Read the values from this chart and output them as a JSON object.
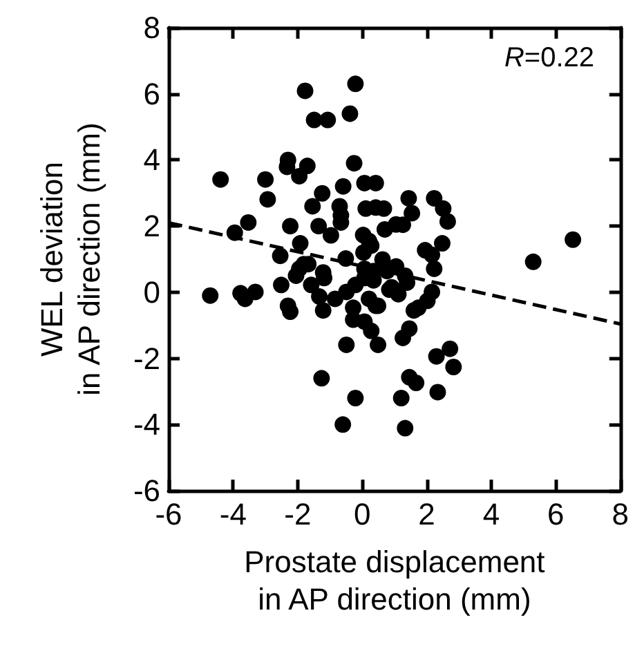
{
  "chart_data": {
    "type": "scatter",
    "xlabel": "Prostate displacement\nin AP direction (mm)",
    "ylabel": "WEL deviation\nin AP direction (mm)",
    "annotations": [
      "R=0.22"
    ],
    "xlim": [
      -6,
      8
    ],
    "ylim": [
      -6,
      8
    ],
    "xticks": [
      -6,
      -4,
      -2,
      0,
      2,
      4,
      6,
      8
    ],
    "yticks": [
      -6,
      -4,
      -2,
      0,
      2,
      4,
      6,
      8
    ],
    "grid": false,
    "marker": "circle",
    "series": [
      {
        "color": "#000000",
        "x": [
          -1.77,
          -0.21,
          -1.49,
          -1.07,
          -0.38,
          -4.39,
          -3.0,
          -2.3,
          -2.33,
          -1.95,
          -1.7,
          -0.25,
          -2.93,
          -1.24,
          -0.59,
          0.07,
          -1.54,
          -0.7,
          0.11,
          0.42,
          0.67,
          -0.66,
          -3.53,
          -2.23,
          -1.35,
          -0.66,
          0.7,
          -3.95,
          -0.97,
          0.03,
          -1.92,
          0.21,
          -2.54,
          -0.51,
          0.04,
          -1.81,
          -1.21,
          0.07,
          1.05,
          0.42,
          1.44,
          2.23,
          2.51,
          2.65,
          1.54,
          1.26,
          2.48,
          1.95,
          2.16,
          2.23,
          0.28,
          0.63,
          1.05,
          1.33,
          5.3,
          6.53,
          -4.71,
          -3.77,
          -3.63,
          -3.31,
          -2.51,
          -2.3,
          -2.23,
          -2.05,
          -1.58,
          -1.18,
          -1.33,
          -1.21,
          -0.84,
          -1.95,
          -1.67,
          -0.49,
          -0.21,
          -0.28,
          -0.28,
          0.07,
          0.35,
          0.21,
          0.49,
          0.07,
          0.28,
          0.49,
          -0.49,
          -1.26,
          -0.21,
          -0.6,
          1.21,
          0.84,
          0.35,
          0.77,
          0.91,
          1.12,
          1.39,
          2.16,
          2.02,
          1.74,
          1.6,
          0.42,
          1.46,
          1.26,
          2.3,
          2.72,
          2.83,
          1.46,
          1.67,
          2.34,
          1.33
        ],
        "values": [
          6.09,
          6.3,
          5.21,
          5.21,
          5.4,
          3.41,
          3.41,
          4.0,
          3.79,
          3.51,
          3.82,
          3.9,
          2.81,
          2.99,
          3.2,
          3.3,
          2.6,
          2.6,
          2.53,
          2.56,
          2.53,
          2.32,
          2.11,
          2.0,
          2.0,
          2.11,
          1.9,
          1.8,
          1.72,
          1.73,
          1.48,
          1.55,
          1.1,
          1.02,
          1.2,
          0.85,
          0.6,
          0.71,
          2.05,
          3.3,
          2.84,
          2.84,
          2.53,
          2.14,
          2.39,
          2.04,
          1.48,
          1.27,
          1.13,
          0.71,
          1.41,
          0.99,
          0.78,
          0.5,
          0.92,
          1.59,
          -0.1,
          -0.03,
          -0.2,
          0.01,
          0.22,
          -0.41,
          -0.59,
          0.5,
          0.22,
          0.43,
          -0.13,
          -0.55,
          -0.2,
          0.71,
          0.85,
          0.01,
          0.22,
          -0.47,
          -0.83,
          0.43,
          0.64,
          -0.2,
          -0.41,
          -0.89,
          -1.17,
          -1.59,
          -1.59,
          -2.6,
          -3.2,
          -4.0,
          -3.2,
          0.08,
          0.36,
          0.64,
          0.15,
          -0.06,
          0.29,
          0.01,
          -0.26,
          -0.47,
          -0.55,
          -0.41,
          -1.1,
          -1.38,
          -1.94,
          -1.71,
          -2.26,
          -2.57,
          -2.74,
          -3.02,
          -4.11
        ]
      },
      {
        "type": "line",
        "color": "#000000",
        "line_style": "dashed",
        "marker": "none",
        "x": [
          -6,
          8
        ],
        "values": [
          2.1,
          -0.96
        ]
      }
    ]
  }
}
